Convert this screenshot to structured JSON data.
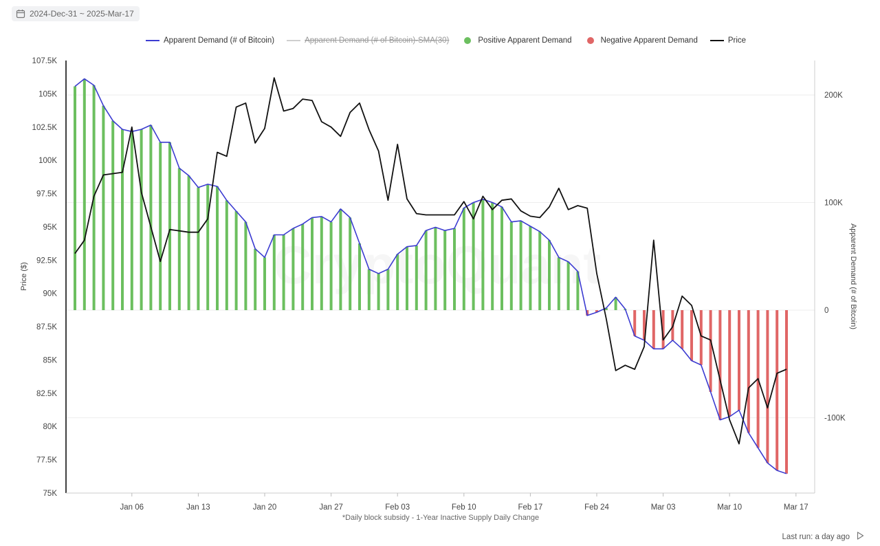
{
  "date_range": {
    "label": "2024-Dec-31 ~ 2025-Mar-17"
  },
  "legend": [
    {
      "label": "Apparent Demand (# of Bitcoin)",
      "kind": "line",
      "color": "#3b3bd1",
      "disabled": false
    },
    {
      "label": "Apparent Demand (# of Bitcoin)-SMA(30)",
      "kind": "line",
      "color": "#cfcfcf",
      "disabled": true
    },
    {
      "label": "Positive Apparent Demand",
      "kind": "dot",
      "color": "#6cbf5f",
      "disabled": false
    },
    {
      "label": "Negative Apparent Demand",
      "kind": "dot",
      "color": "#e06666",
      "disabled": false
    },
    {
      "label": "Price",
      "kind": "line",
      "color": "#111111",
      "disabled": false
    }
  ],
  "footer": {
    "last_run": "Last run: a day ago"
  },
  "chart_data": {
    "type": "bar+line",
    "title": "",
    "watermark": "CryptoQuant",
    "xlabel": "*Daily block subsidy - 1-Year Inactive Supply Daily Change",
    "ylabel_left": "Price ($)",
    "ylabel_right": "Apparent Demand (# of Bitcoin)",
    "start_date": "2024-12-31",
    "x_ticks": [
      "Jan 06",
      "Jan 13",
      "Jan 20",
      "Jan 27",
      "Feb 03",
      "Feb 10",
      "Feb 17",
      "Feb 24",
      "Mar 03",
      "Mar 10",
      "Mar 17"
    ],
    "left_axis": {
      "ylim": [
        75000,
        107500
      ],
      "ticks": [
        75000,
        77500,
        80000,
        82500,
        85000,
        87500,
        90000,
        92500,
        95000,
        97500,
        100000,
        102500,
        105000,
        107500
      ],
      "tick_labels": [
        "75K",
        "77.5K",
        "80K",
        "82.5K",
        "85K",
        "87.5K",
        "90K",
        "92.5K",
        "95K",
        "97.5K",
        "100K",
        "102.5K",
        "105K",
        "107.5K"
      ]
    },
    "right_axis": {
      "ylim": [
        -170000,
        232000
      ],
      "ticks": [
        -100000,
        0,
        100000,
        200000
      ],
      "tick_labels": [
        "-100K",
        "0",
        "100K",
        "200K"
      ]
    },
    "series": [
      {
        "name": "Apparent Demand (# of Bitcoin)",
        "axis": "right",
        "values": [
          208000,
          215000,
          209000,
          190000,
          176000,
          168000,
          166000,
          168000,
          172000,
          156000,
          156000,
          132000,
          125000,
          114000,
          117000,
          115000,
          102000,
          92000,
          82000,
          57000,
          49000,
          70000,
          70000,
          76000,
          80000,
          86000,
          87000,
          82000,
          94000,
          86000,
          62000,
          38000,
          34000,
          38000,
          52000,
          59000,
          60000,
          74000,
          77000,
          74000,
          76000,
          95000,
          100000,
          103000,
          100000,
          96000,
          82000,
          83000,
          78000,
          73000,
          65000,
          49000,
          45000,
          36000,
          -5000,
          -2000,
          2000,
          12000,
          1000,
          -24000,
          -28000,
          -36000,
          -36000,
          -28000,
          -36000,
          -47000,
          -51000,
          -76000,
          -102000,
          -99000,
          -93000,
          -114000,
          -128000,
          -142000,
          -149000,
          -152000
        ],
        "color": "#3b3bd1"
      },
      {
        "name": "Price",
        "axis": "left",
        "values": [
          93000,
          94000,
          97300,
          98900,
          99000,
          99100,
          102500,
          97600,
          95000,
          92400,
          94800,
          94700,
          94600,
          94600,
          95600,
          100600,
          100300,
          104000,
          104300,
          101300,
          102400,
          106200,
          103700,
          103900,
          104600,
          104500,
          102900,
          102500,
          101800,
          103600,
          104300,
          102300,
          100700,
          97000,
          101200,
          97100,
          96000,
          95900,
          95900,
          95900,
          95900,
          96900,
          95600,
          97300,
          96300,
          97000,
          97100,
          96200,
          95800,
          95700,
          96500,
          97900,
          96300,
          96600,
          96400,
          91500,
          88100,
          84200,
          84600,
          84300,
          86000,
          94000,
          86500,
          87500,
          89800,
          89100,
          86800,
          86500,
          83500,
          80500,
          78700,
          82900,
          83600,
          81400,
          84000,
          84300
        ],
        "color": "#111111"
      }
    ]
  }
}
